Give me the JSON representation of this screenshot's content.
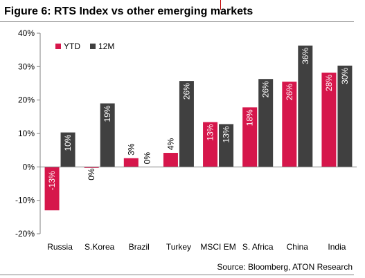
{
  "title": "Figure 6: RTS Index vs other emerging markets",
  "source": "Source: Bloomberg, ATON Research",
  "chart_data": {
    "type": "bar",
    "categories": [
      "Russia",
      "S.Korea",
      "Brazil",
      "Turkey",
      "MSCI EM",
      "S. Africa",
      "China",
      "India"
    ],
    "series": [
      {
        "name": "YTD",
        "color": "#d6164b",
        "values": [
          -13,
          -0.3,
          2.6,
          4.2,
          13.4,
          17.8,
          25.5,
          28.2
        ],
        "labels": [
          "-13%",
          "0%",
          "3%",
          "4%",
          "13%",
          "18%",
          "26%",
          "28%"
        ]
      },
      {
        "name": "12M",
        "color": "#404040",
        "values": [
          10.3,
          19,
          0,
          25.7,
          12.8,
          26.3,
          36.3,
          30.3
        ],
        "labels": [
          "10%",
          "19%",
          "0%",
          "26%",
          "13%",
          "26%",
          "36%",
          "30%"
        ]
      }
    ],
    "ylim": [
      -20,
      40
    ],
    "yticks": [
      -20,
      -10,
      0,
      10,
      20,
      30,
      40
    ],
    "ytick_labels": [
      "-20%",
      "-10%",
      "0%",
      "10%",
      "20%",
      "30%",
      "40%"
    ],
    "xlabel": "",
    "ylabel": "",
    "legend": "top-left",
    "grid": false
  }
}
